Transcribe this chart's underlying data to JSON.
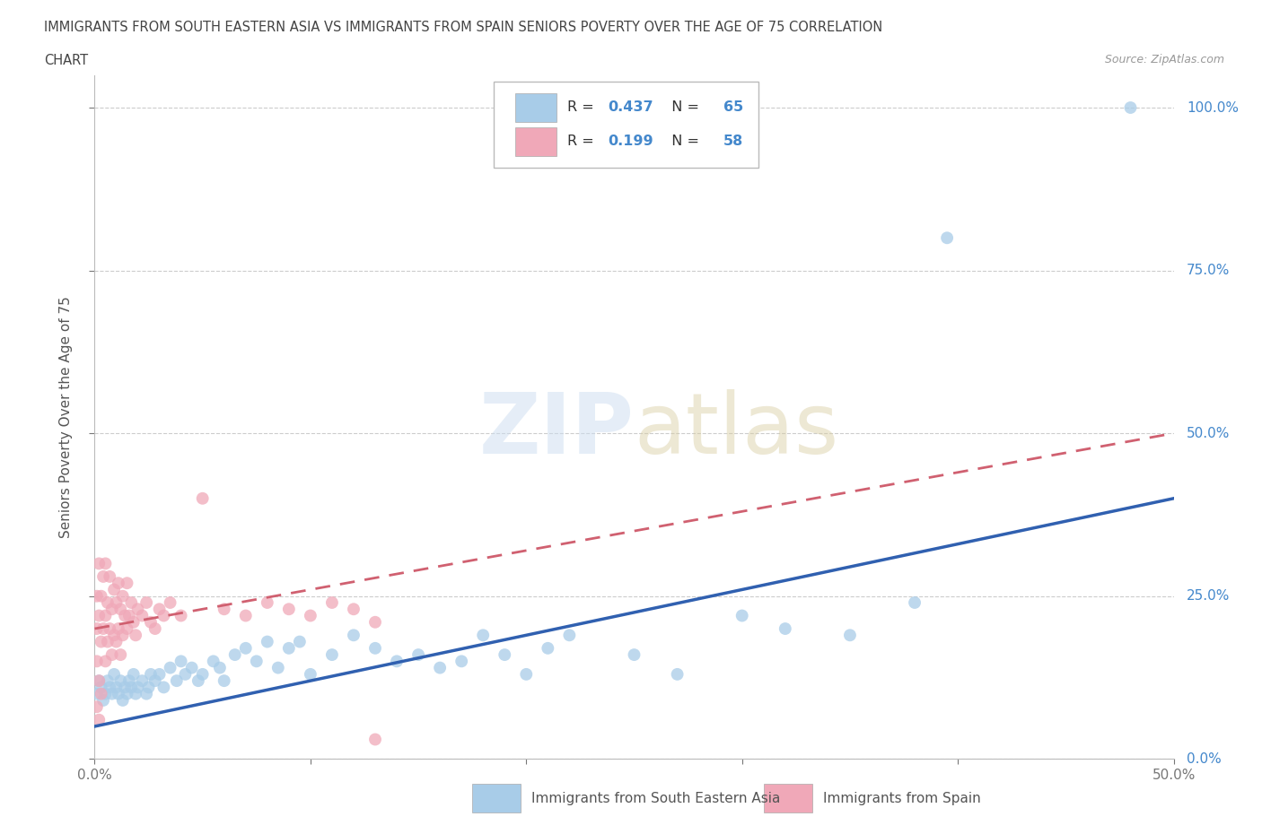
{
  "title_line1": "IMMIGRANTS FROM SOUTH EASTERN ASIA VS IMMIGRANTS FROM SPAIN SENIORS POVERTY OVER THE AGE OF 75 CORRELATION",
  "title_line2": "CHART",
  "source": "Source: ZipAtlas.com",
  "ylabel": "Seniors Poverty Over the Age of 75",
  "xlabel_blue": "Immigrants from South Eastern Asia",
  "xlabel_pink": "Immigrants from Spain",
  "xlim": [
    0.0,
    0.5
  ],
  "ylim": [
    0.0,
    1.05
  ],
  "ytick_labels": [
    "0.0%",
    "25.0%",
    "50.0%",
    "75.0%",
    "100.0%"
  ],
  "ytick_vals": [
    0.0,
    0.25,
    0.5,
    0.75,
    1.0
  ],
  "blue_R": 0.437,
  "blue_N": 65,
  "pink_R": 0.199,
  "pink_N": 58,
  "blue_color": "#a8cce8",
  "pink_color": "#f0a8b8",
  "blue_line_color": "#3060b0",
  "pink_line_color": "#d06070",
  "blue_scatter_x": [
    0.001,
    0.002,
    0.003,
    0.004,
    0.005,
    0.006,
    0.007,
    0.008,
    0.009,
    0.01,
    0.011,
    0.012,
    0.013,
    0.014,
    0.015,
    0.016,
    0.017,
    0.018,
    0.019,
    0.02,
    0.022,
    0.024,
    0.025,
    0.026,
    0.028,
    0.03,
    0.032,
    0.035,
    0.038,
    0.04,
    0.042,
    0.045,
    0.048,
    0.05,
    0.055,
    0.058,
    0.06,
    0.065,
    0.07,
    0.075,
    0.08,
    0.085,
    0.09,
    0.095,
    0.1,
    0.11,
    0.12,
    0.13,
    0.14,
    0.15,
    0.16,
    0.17,
    0.18,
    0.19,
    0.2,
    0.21,
    0.22,
    0.25,
    0.27,
    0.3,
    0.32,
    0.35,
    0.38,
    0.395,
    0.48
  ],
  "blue_scatter_y": [
    0.1,
    0.12,
    0.11,
    0.09,
    0.1,
    0.12,
    0.11,
    0.1,
    0.13,
    0.11,
    0.1,
    0.12,
    0.09,
    0.11,
    0.1,
    0.12,
    0.11,
    0.13,
    0.1,
    0.11,
    0.12,
    0.1,
    0.11,
    0.13,
    0.12,
    0.13,
    0.11,
    0.14,
    0.12,
    0.15,
    0.13,
    0.14,
    0.12,
    0.13,
    0.15,
    0.14,
    0.12,
    0.16,
    0.17,
    0.15,
    0.18,
    0.14,
    0.17,
    0.18,
    0.13,
    0.16,
    0.19,
    0.17,
    0.15,
    0.16,
    0.14,
    0.15,
    0.19,
    0.16,
    0.13,
    0.17,
    0.19,
    0.16,
    0.13,
    0.22,
    0.2,
    0.19,
    0.24,
    0.8,
    1.0
  ],
  "pink_scatter_x": [
    0.001,
    0.001,
    0.001,
    0.002,
    0.002,
    0.002,
    0.003,
    0.003,
    0.003,
    0.004,
    0.004,
    0.005,
    0.005,
    0.005,
    0.006,
    0.006,
    0.007,
    0.007,
    0.008,
    0.008,
    0.009,
    0.009,
    0.01,
    0.01,
    0.011,
    0.011,
    0.012,
    0.012,
    0.013,
    0.013,
    0.014,
    0.015,
    0.015,
    0.016,
    0.017,
    0.018,
    0.019,
    0.02,
    0.022,
    0.024,
    0.026,
    0.028,
    0.03,
    0.032,
    0.035,
    0.04,
    0.05,
    0.06,
    0.07,
    0.08,
    0.09,
    0.1,
    0.11,
    0.12,
    0.13,
    0.001,
    0.002,
    0.13
  ],
  "pink_scatter_y": [
    0.15,
    0.2,
    0.25,
    0.12,
    0.22,
    0.3,
    0.18,
    0.25,
    0.1,
    0.2,
    0.28,
    0.15,
    0.22,
    0.3,
    0.18,
    0.24,
    0.2,
    0.28,
    0.16,
    0.23,
    0.19,
    0.26,
    0.18,
    0.24,
    0.2,
    0.27,
    0.16,
    0.23,
    0.19,
    0.25,
    0.22,
    0.2,
    0.27,
    0.22,
    0.24,
    0.21,
    0.19,
    0.23,
    0.22,
    0.24,
    0.21,
    0.2,
    0.23,
    0.22,
    0.24,
    0.22,
    0.4,
    0.23,
    0.22,
    0.24,
    0.23,
    0.22,
    0.24,
    0.23,
    0.21,
    0.08,
    0.06,
    0.03
  ],
  "blue_line_x0": 0.0,
  "blue_line_y0": 0.05,
  "blue_line_x1": 0.5,
  "blue_line_y1": 0.4,
  "pink_line_x0": 0.0,
  "pink_line_y0": 0.2,
  "pink_line_x1": 0.5,
  "pink_line_y1": 0.5
}
